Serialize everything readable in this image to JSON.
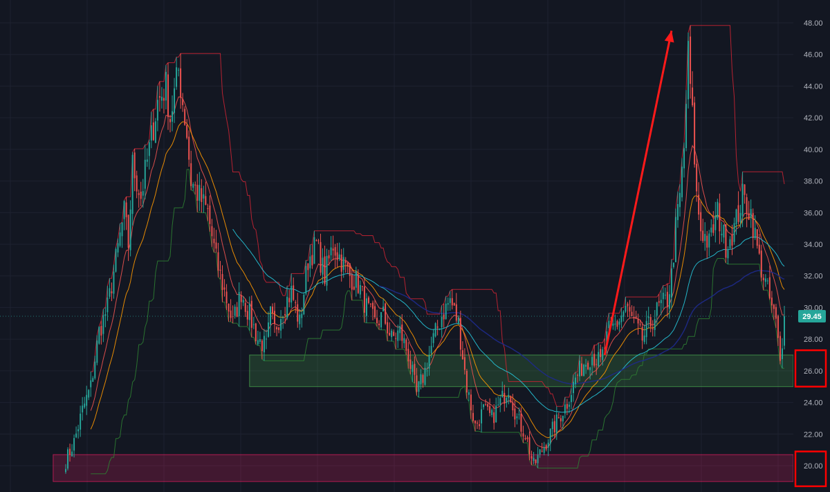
{
  "chart_data": {
    "type": "candlestick",
    "ylim": [
      19,
      49
    ],
    "y_ticks": [
      20,
      22,
      24,
      26,
      28,
      30,
      32,
      34,
      36,
      38,
      40,
      42,
      44,
      46,
      48
    ],
    "y_tick_labels": [
      "20.00",
      "22.00",
      "24.00",
      "26.00",
      "28.00",
      "30.00",
      "32.00",
      "34.00",
      "36.00",
      "38.00",
      "40.00",
      "42.00",
      "44.00",
      "46.00",
      "48.00"
    ],
    "grid": true,
    "last_price": 29.45,
    "last_price_label": "29.45",
    "price_path": [
      [
        0,
        20.3
      ],
      [
        4,
        21.5
      ],
      [
        8,
        23.5
      ],
      [
        12,
        25
      ],
      [
        16,
        28.5
      ],
      [
        20,
        30
      ],
      [
        24,
        33
      ],
      [
        28,
        36
      ],
      [
        30,
        34
      ],
      [
        32,
        39
      ],
      [
        36,
        37
      ],
      [
        40,
        40
      ],
      [
        44,
        43
      ],
      [
        48,
        44
      ],
      [
        50,
        42
      ],
      [
        54,
        45
      ],
      [
        58,
        41
      ],
      [
        60,
        38
      ],
      [
        64,
        37
      ],
      [
        68,
        36
      ],
      [
        72,
        33
      ],
      [
        76,
        31
      ],
      [
        80,
        29
      ],
      [
        84,
        31
      ],
      [
        88,
        29.5
      ],
      [
        92,
        28
      ],
      [
        96,
        27.5
      ],
      [
        98,
        29.5
      ],
      [
        100,
        28.6
      ],
      [
        104,
        30
      ],
      [
        108,
        31
      ],
      [
        112,
        29
      ],
      [
        116,
        33
      ],
      [
        120,
        34
      ],
      [
        124,
        32
      ],
      [
        128,
        34
      ],
      [
        132,
        33
      ],
      [
        136,
        32
      ],
      [
        140,
        31.5
      ],
      [
        144,
        30
      ],
      [
        148,
        29
      ],
      [
        152,
        29.5
      ],
      [
        156,
        28
      ],
      [
        160,
        28.5
      ],
      [
        164,
        27
      ],
      [
        168,
        24.5
      ],
      [
        172,
        26
      ],
      [
        176,
        28
      ],
      [
        180,
        29.5
      ],
      [
        184,
        30.5
      ],
      [
        188,
        29
      ],
      [
        190,
        27
      ],
      [
        192,
        25
      ],
      [
        196,
        22.5
      ],
      [
        200,
        23.5
      ],
      [
        204,
        23
      ],
      [
        208,
        24
      ],
      [
        212,
        25
      ],
      [
        216,
        23
      ],
      [
        220,
        22
      ],
      [
        224,
        20
      ],
      [
        228,
        21
      ],
      [
        232,
        22
      ],
      [
        236,
        23
      ],
      [
        240,
        24
      ],
      [
        244,
        25.5
      ],
      [
        248,
        26.5
      ],
      [
        252,
        27
      ],
      [
        256,
        26.5
      ],
      [
        260,
        28.5
      ],
      [
        264,
        29
      ],
      [
        268,
        30
      ],
      [
        272,
        29
      ],
      [
        276,
        28
      ],
      [
        280,
        29
      ],
      [
        284,
        30
      ],
      [
        288,
        30.5
      ],
      [
        290,
        32
      ],
      [
        292,
        35
      ],
      [
        294,
        37
      ],
      [
        296,
        40
      ],
      [
        298,
        46
      ],
      [
        300,
        42
      ],
      [
        302,
        37
      ],
      [
        304,
        35
      ],
      [
        308,
        34
      ],
      [
        312,
        36
      ],
      [
        316,
        34
      ],
      [
        320,
        35
      ],
      [
        324,
        37
      ],
      [
        328,
        36
      ],
      [
        332,
        33
      ],
      [
        336,
        31
      ],
      [
        340,
        29
      ],
      [
        342,
        26.5
      ],
      [
        344,
        29.45
      ]
    ],
    "bar_count": 345,
    "overlays": [
      {
        "color": "#c82333",
        "period": 20,
        "type": "trailing-high"
      },
      {
        "color": "#2e7d32",
        "period": 20,
        "type": "trailing-low"
      },
      {
        "color": "#ef5350",
        "period": 10,
        "type": "ema"
      },
      {
        "color": "#ff9800",
        "period": 20,
        "type": "ema"
      },
      {
        "color": "#26c6da",
        "period": 50,
        "type": "ema"
      },
      {
        "color": "#1e2a8a",
        "period": 100,
        "type": "ema"
      }
    ],
    "zones": [
      {
        "name": "support-zone-upper",
        "y_range": [
          25,
          27
        ],
        "fill": "#4caf50",
        "x_start": 88
      },
      {
        "name": "support-zone-lower",
        "y_range": [
          19,
          20.7
        ],
        "fill": "#e91e63",
        "x_start": -6
      }
    ],
    "arrow": {
      "from": [
        258,
        27
      ],
      "to": [
        290,
        47.5
      ],
      "color": "#ff1a1a"
    },
    "highlights": [
      {
        "name": "axis-highlight-26",
        "y_range": [
          25,
          27.3
        ]
      },
      {
        "name": "axis-highlight-20",
        "y_range": [
          18.7,
          20.9
        ]
      }
    ],
    "colors": {
      "background": "#131722",
      "grid": "#1e2230",
      "axis_text": "#b2b5be",
      "up": "#26a69a",
      "down": "#ef5350",
      "price_tag": "#26a69a",
      "highlight_box": "#ff0000"
    }
  }
}
